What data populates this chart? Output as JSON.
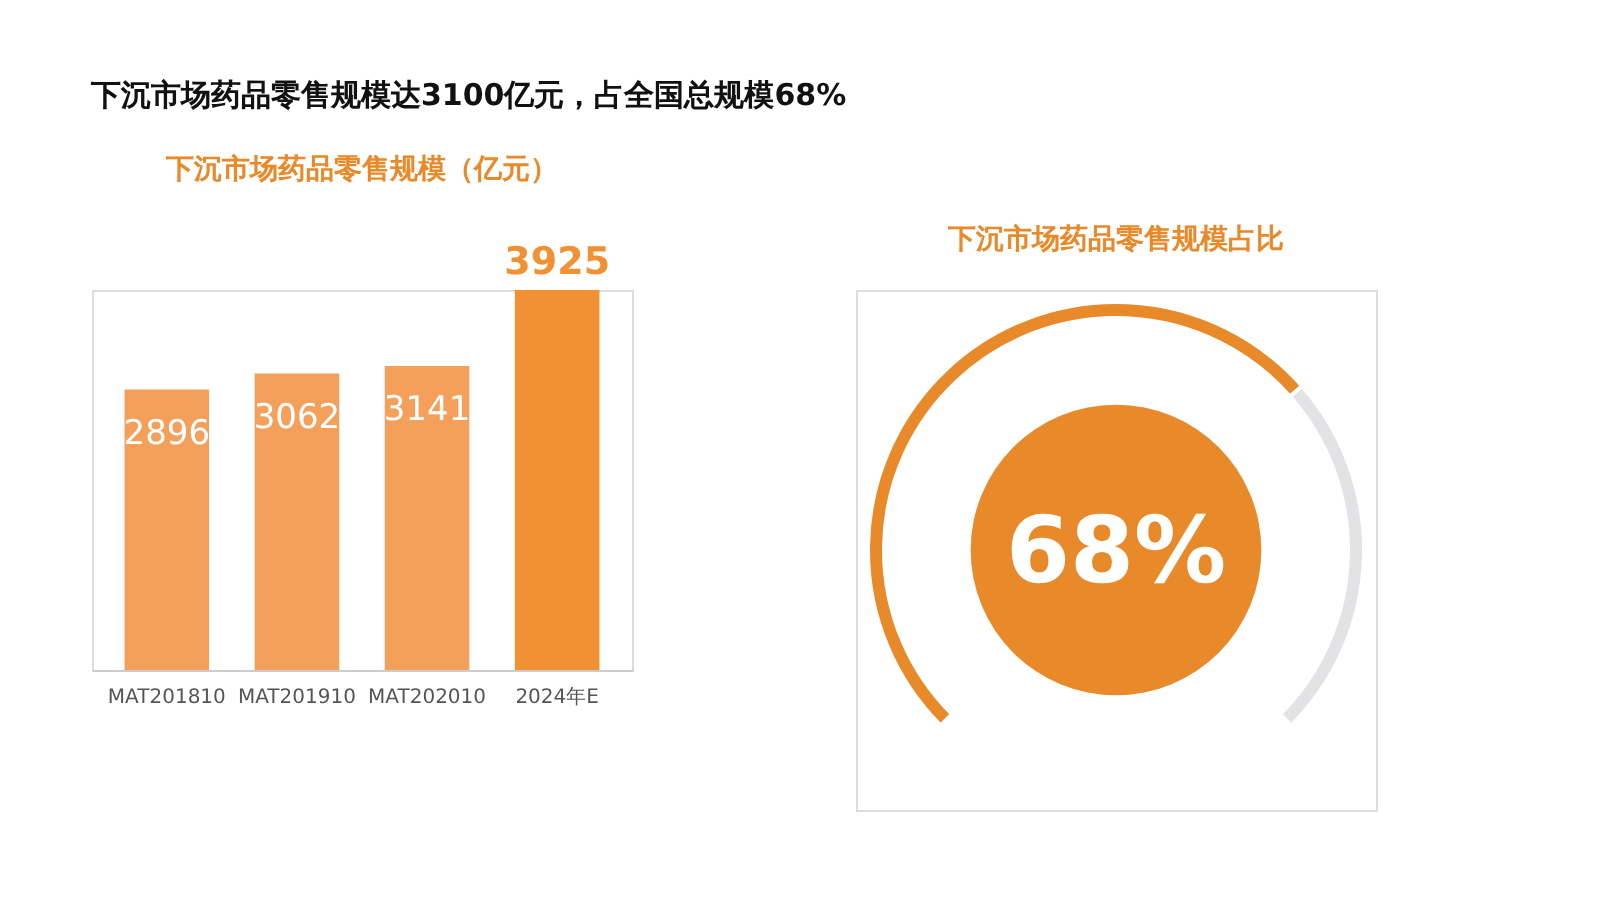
{
  "chart_data": [
    {
      "type": "bar",
      "title": "下沉市场药品零售规模达3100亿元，占全国总规模68%",
      "subtitle": "下沉市场药品零售规模（亿元）",
      "categories": [
        "MAT201810",
        "MAT201910",
        "MAT202010",
        "2024年E"
      ],
      "values": [
        2896,
        3062,
        3141,
        3925
      ],
      "colors": [
        "#f5a05a",
        "#f5a05a",
        "#f5a05a",
        "#f29133"
      ],
      "data_labels": true
    },
    {
      "type": "donut",
      "title": "下沉市场药品零售规模占比",
      "categories": [
        null,
        null
      ],
      "values": [
        68,
        32
      ],
      "colors": [
        "#e8892a",
        "#e3e3e6"
      ],
      "annotations": [
        "68%"
      ]
    }
  ]
}
